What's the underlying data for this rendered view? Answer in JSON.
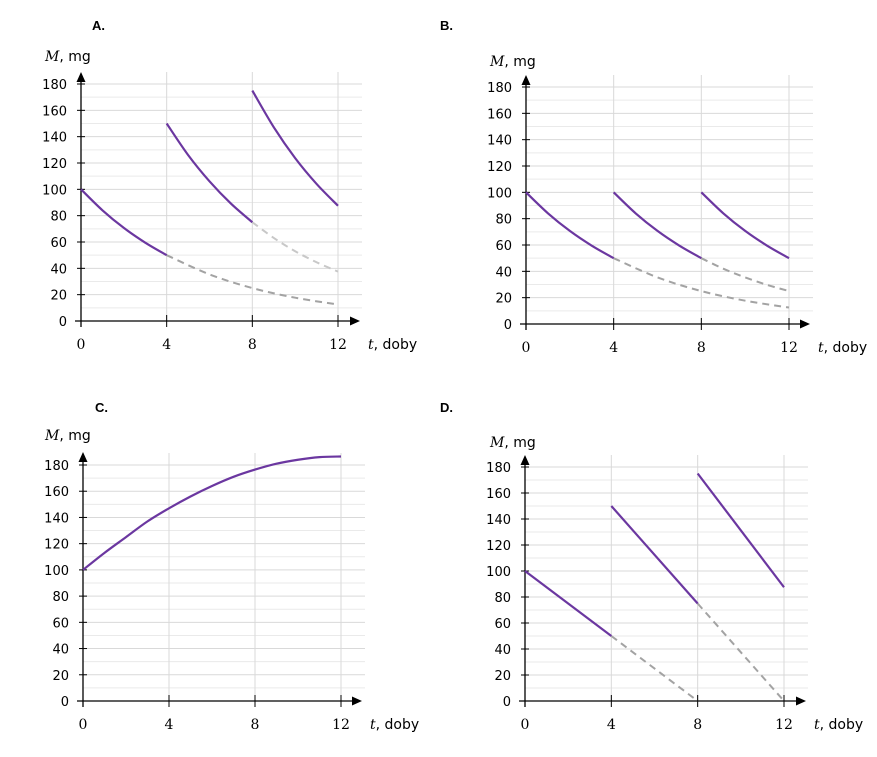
{
  "chart_data": [
    {
      "type": "line",
      "panel_label": "A.",
      "ylabel_symbol": "M",
      "ylabel_unit": ", mg",
      "xlabel_symbol": "t",
      "xlabel_unit": ", doby",
      "xlim": [
        0,
        12
      ],
      "ylim": [
        0,
        180
      ],
      "x_ticks": [
        0,
        4,
        8,
        12
      ],
      "y_ticks": [
        0,
        20,
        40,
        60,
        80,
        100,
        120,
        140,
        160,
        180
      ],
      "grid": true,
      "solid_segments": [
        {
          "x": [
            0,
            1,
            2,
            3,
            4
          ],
          "y": [
            100,
            84.1,
            70.7,
            59.5,
            50
          ]
        },
        {
          "x": [
            4,
            5,
            6,
            7,
            8
          ],
          "y": [
            150,
            126.1,
            106.1,
            89.2,
            75
          ]
        },
        {
          "x": [
            8,
            9,
            10,
            11,
            12
          ],
          "y": [
            175,
            147.2,
            123.7,
            104.1,
            87.5
          ]
        }
      ],
      "dashed_segments": [
        {
          "color": "#a3a3a3",
          "x": [
            4,
            6,
            8,
            10,
            12
          ],
          "y": [
            50,
            35.4,
            25,
            17.7,
            12.5
          ]
        },
        {
          "color": "#c8c8c8",
          "x": [
            8,
            9,
            10,
            11,
            12
          ],
          "y": [
            75,
            63.1,
            53,
            44.6,
            37.5
          ]
        }
      ]
    },
    {
      "type": "line",
      "panel_label": "B.",
      "ylabel_symbol": "M",
      "ylabel_unit": ", mg",
      "xlabel_symbol": "t",
      "xlabel_unit": ", doby",
      "xlim": [
        0,
        12
      ],
      "ylim": [
        0,
        180
      ],
      "x_ticks": [
        0,
        4,
        8,
        12
      ],
      "y_ticks": [
        0,
        20,
        40,
        60,
        80,
        100,
        120,
        140,
        160,
        180
      ],
      "grid": true,
      "solid_segments": [
        {
          "x": [
            0,
            1,
            2,
            3,
            4
          ],
          "y": [
            100,
            84.1,
            70.7,
            59.5,
            50
          ]
        },
        {
          "x": [
            4,
            5,
            6,
            7,
            8
          ],
          "y": [
            100,
            84.1,
            70.7,
            59.5,
            50
          ]
        },
        {
          "x": [
            8,
            9,
            10,
            11,
            12
          ],
          "y": [
            100,
            84.1,
            70.7,
            59.5,
            50
          ]
        }
      ],
      "dashed_segments": [
        {
          "color": "#a3a3a3",
          "x": [
            4,
            6,
            8,
            10,
            12
          ],
          "y": [
            50,
            35.4,
            25,
            17.7,
            12.5
          ]
        },
        {
          "color": "#a3a3a3",
          "x": [
            8,
            9,
            10,
            11,
            12
          ],
          "y": [
            50,
            42,
            35.4,
            29.7,
            25
          ]
        }
      ]
    },
    {
      "type": "line",
      "panel_label": "C.",
      "ylabel_symbol": "M",
      "ylabel_unit": ", mg",
      "xlabel_symbol": "t",
      "xlabel_unit": ", doby",
      "xlim": [
        0,
        12
      ],
      "ylim": [
        0,
        180
      ],
      "x_ticks": [
        0,
        4,
        8,
        12
      ],
      "y_ticks": [
        0,
        20,
        40,
        60,
        80,
        100,
        120,
        140,
        160,
        180
      ],
      "grid": true,
      "solid_segments": [
        {
          "x": [
            0,
            1,
            2,
            3,
            4,
            5,
            6,
            7,
            8,
            9,
            10,
            11,
            12
          ],
          "y": [
            100,
            113,
            125,
            137,
            147,
            156,
            164,
            171,
            176.5,
            181,
            184,
            186,
            186.5
          ]
        }
      ],
      "dashed_segments": []
    },
    {
      "type": "line",
      "panel_label": "D.",
      "ylabel_symbol": "M",
      "ylabel_unit": ", mg",
      "xlabel_symbol": "t",
      "xlabel_unit": ", doby",
      "xlim": [
        0,
        12
      ],
      "ylim": [
        0,
        180
      ],
      "x_ticks": [
        0,
        4,
        8,
        12
      ],
      "y_ticks": [
        0,
        20,
        40,
        60,
        80,
        100,
        120,
        140,
        160,
        180
      ],
      "grid": true,
      "solid_segments": [
        {
          "x": [
            0,
            4
          ],
          "y": [
            100,
            50
          ]
        },
        {
          "x": [
            4,
            8
          ],
          "y": [
            150,
            75
          ]
        },
        {
          "x": [
            8,
            12
          ],
          "y": [
            175,
            87.5
          ]
        }
      ],
      "dashed_segments": [
        {
          "color": "#a3a3a3",
          "x": [
            4,
            8
          ],
          "y": [
            50,
            0
          ]
        },
        {
          "color": "#a3a3a3",
          "x": [
            8,
            12
          ],
          "y": [
            75,
            0
          ]
        }
      ]
    }
  ],
  "colors": {
    "solid_series": "#6b37a0",
    "grid": "#d9d9d9",
    "axis": "#000000"
  }
}
